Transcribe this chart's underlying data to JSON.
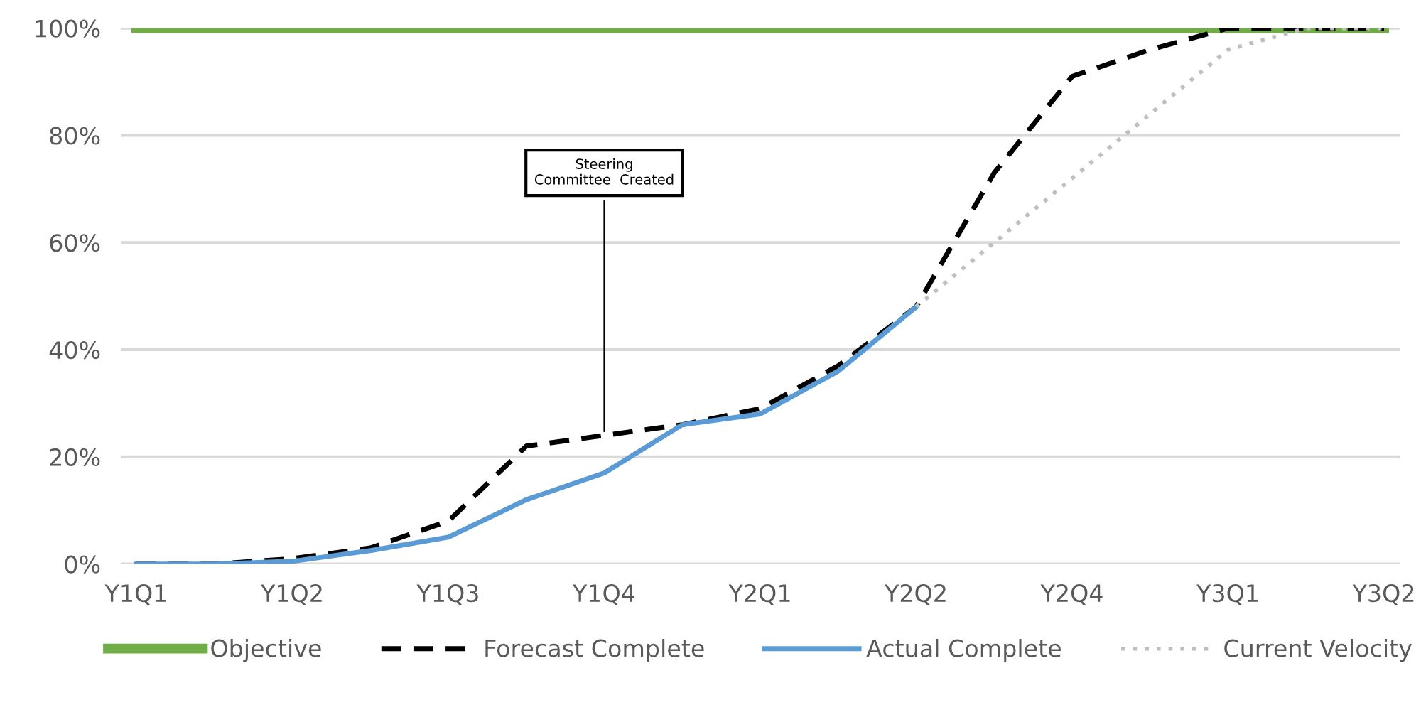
{
  "chart_data": {
    "type": "line",
    "categories": [
      "Y1Q1",
      null,
      "Y1Q2",
      null,
      "Y1Q3",
      null,
      "Y1Q4",
      null,
      "Y2Q1",
      null,
      "Y2Q2",
      null,
      "Y2Q4",
      null,
      "Y3Q1",
      null,
      "Y3Q2"
    ],
    "series": [
      {
        "name": "Objective",
        "color": "#70ad47",
        "line_style": "solid",
        "values": [
          100,
          100,
          100,
          100,
          100,
          100,
          100,
          100,
          100,
          100,
          100,
          100,
          100,
          100,
          100,
          100,
          100
        ]
      },
      {
        "name": "Forecast Complete",
        "color": "#000000",
        "line_style": "dashed",
        "values": [
          0,
          0,
          1,
          3,
          8,
          22,
          24,
          26,
          29,
          37,
          48,
          73,
          91,
          96,
          100,
          100,
          100
        ]
      },
      {
        "name": "Actual Complete",
        "color": "#5b9bd5",
        "line_style": "solid",
        "values": [
          0,
          0,
          0.5,
          2.5,
          5,
          12,
          17,
          26,
          28,
          36,
          48,
          null,
          null,
          null,
          null,
          null,
          null
        ]
      },
      {
        "name": "Current Velocity",
        "color": "#bfbfbf",
        "line_style": "dotted",
        "values": [
          null,
          null,
          null,
          null,
          null,
          null,
          null,
          null,
          null,
          null,
          48,
          60,
          72,
          84,
          96,
          100,
          100
        ]
      }
    ],
    "ylim": [
      0,
      100
    ],
    "yticks": [
      {
        "value": 0,
        "label": "0%"
      },
      {
        "value": 20,
        "label": "20%"
      },
      {
        "value": 40,
        "label": "40%"
      },
      {
        "value": 60,
        "label": "60%"
      },
      {
        "value": 80,
        "label": "80%"
      },
      {
        "value": 100,
        "label": "100%"
      }
    ],
    "grid": "y",
    "legend": "bottom",
    "marker": "none",
    "annotations": [
      {
        "text": "Steering\nCommittee  Created",
        "x": "Y1Q4",
        "y": 24
      }
    ]
  }
}
